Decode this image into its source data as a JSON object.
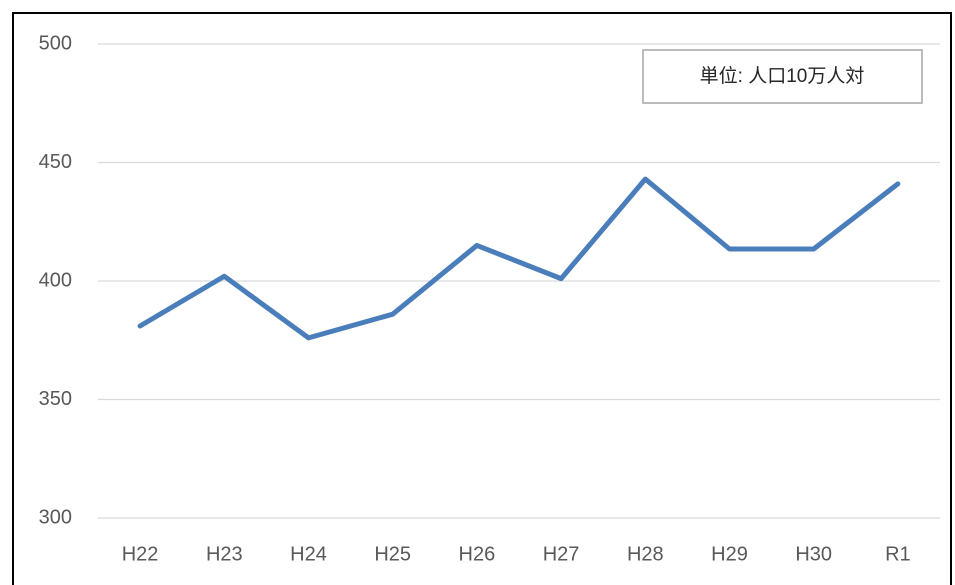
{
  "chart_data": {
    "type": "line",
    "annotation": "単位: 人口10万人対",
    "categories": [
      "H22",
      "H23",
      "H24",
      "H25",
      "H26",
      "H27",
      "H28",
      "H29",
      "H30",
      "R1"
    ],
    "series": [
      {
        "color": "#4a7ebb",
        "values": [
          381,
          402,
          376,
          386,
          415,
          401,
          443,
          413.5,
          413.5,
          441
        ]
      }
    ],
    "ylim": [
      300,
      500
    ],
    "yticks": [
      300,
      350,
      400,
      450,
      500
    ],
    "grid": true
  }
}
